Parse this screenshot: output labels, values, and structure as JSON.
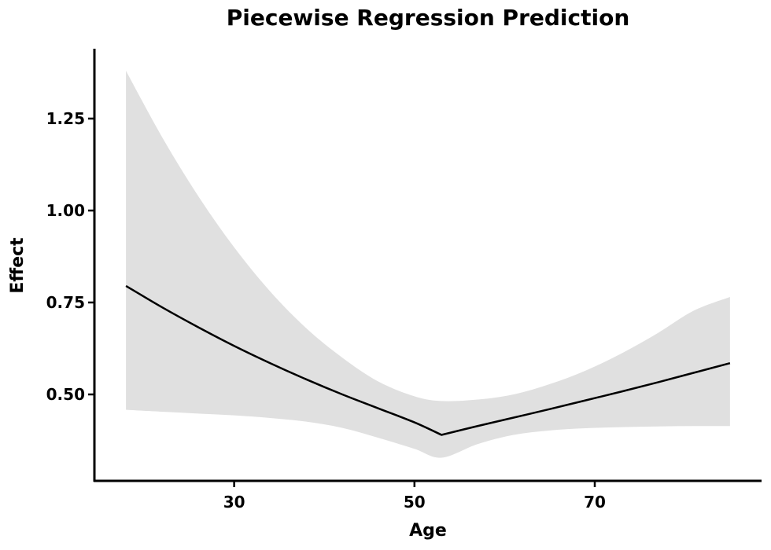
{
  "chart_data": {
    "type": "line",
    "title": "Piecewise Regression Prediction",
    "xlabel": "Age",
    "ylabel": "Effect",
    "xlim": [
      14.5,
      88.5
    ],
    "ylim": [
      0.265,
      1.44
    ],
    "x_ticks": [
      30,
      50,
      70
    ],
    "y_ticks": [
      0.5,
      0.75,
      1.0,
      1.25
    ],
    "y_tick_labels": [
      "0.50",
      "0.75",
      "1.00",
      "1.25"
    ],
    "grid": false,
    "legend": "none",
    "colors": {
      "line": "#000000",
      "band": "#e0e0e0"
    },
    "series": [
      {
        "x": [
          18,
          22,
          26,
          30,
          34,
          38,
          42,
          46,
          50,
          53,
          57,
          61,
          65,
          69,
          73,
          77,
          81,
          85
        ],
        "y": [
          0.795,
          0.737,
          0.683,
          0.632,
          0.585,
          0.541,
          0.5,
          0.462,
          0.424,
          0.39,
          0.414,
          0.437,
          0.46,
          0.484,
          0.508,
          0.533,
          0.559,
          0.585
        ],
        "lower": [
          0.458,
          0.453,
          0.448,
          0.443,
          0.436,
          0.426,
          0.409,
          0.382,
          0.352,
          0.328,
          0.365,
          0.39,
          0.402,
          0.408,
          0.411,
          0.413,
          0.414,
          0.414
        ],
        "upper": [
          1.38,
          1.2,
          1.04,
          0.9,
          0.78,
          0.68,
          0.6,
          0.535,
          0.495,
          0.482,
          0.486,
          0.5,
          0.528,
          0.565,
          0.612,
          0.667,
          0.728,
          0.765
        ]
      }
    ]
  }
}
